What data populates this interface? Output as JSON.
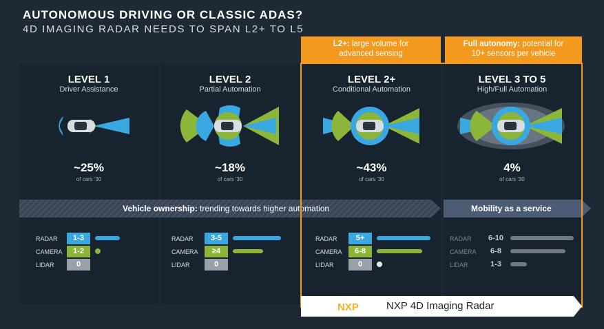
{
  "header": {
    "title": "AUTONOMOUS DRIVING OR CLASSIC ADAS?",
    "subtitle": "4D IMAGING RADAR NEEDS TO SPAN L2+ TO L5"
  },
  "callouts": {
    "l2plus_bold": "L2+:",
    "l2plus_text": "large volume for",
    "l2plus_text2": "advanced sensing",
    "full_bold": "Full autonomy:",
    "full_text": "potential for",
    "full_text2": "10+ sensors per vehicle"
  },
  "levels": [
    {
      "title": "LEVEL 1",
      "subtitle": "Driver Assistance",
      "share": "~25%",
      "share_note": "of cars '30"
    },
    {
      "title": "LEVEL 2",
      "subtitle": "Partial Automation",
      "share": "~18%",
      "share_note": "of cars '30"
    },
    {
      "title": "LEVEL 2+",
      "subtitle": "Conditional Automation",
      "share": "~43%",
      "share_note": "of cars '30"
    },
    {
      "title": "LEVEL 3 TO 5",
      "subtitle": "High/Full Automation",
      "share": "4%",
      "share_note": "of cars '30"
    }
  ],
  "bands": {
    "ownership_bold": "Vehicle ownership:",
    "ownership_text": "trending towards higher automation",
    "maas": "Mobility as a service"
  },
  "sensor_labels": {
    "radar": "RADAR",
    "camera": "CAMERA",
    "lidar": "LIDAR"
  },
  "sensors": [
    {
      "radar": "1-3",
      "camera": "1-2",
      "lidar": "0"
    },
    {
      "radar": "3-5",
      "camera": "≥4",
      "lidar": "0"
    },
    {
      "radar": "5+",
      "camera": "6-8",
      "lidar": "0"
    },
    {
      "radar": "6-10",
      "camera": "6-8",
      "lidar": "1-3"
    }
  ],
  "nxp": {
    "logo": "NXP",
    "label": "NXP 4D Imaging Radar"
  },
  "colors": {
    "orange": "#f39a1e",
    "radar_blue": "#3aa8e0",
    "camera_green": "#8bb63a",
    "lidar_gray": "#9aa0a6"
  }
}
